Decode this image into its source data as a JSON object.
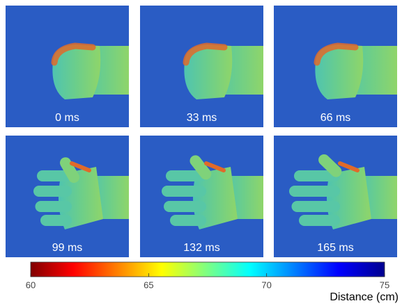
{
  "panels": [
    {
      "label": "0 ms"
    },
    {
      "label": "33 ms"
    },
    {
      "label": "66 ms"
    },
    {
      "label": "99 ms"
    },
    {
      "label": "132 ms"
    },
    {
      "label": "165 ms"
    }
  ],
  "colorbar": {
    "range": [
      60,
      75
    ],
    "ticks": [
      60,
      65,
      70,
      75
    ],
    "label": "Distance (cm)"
  }
}
